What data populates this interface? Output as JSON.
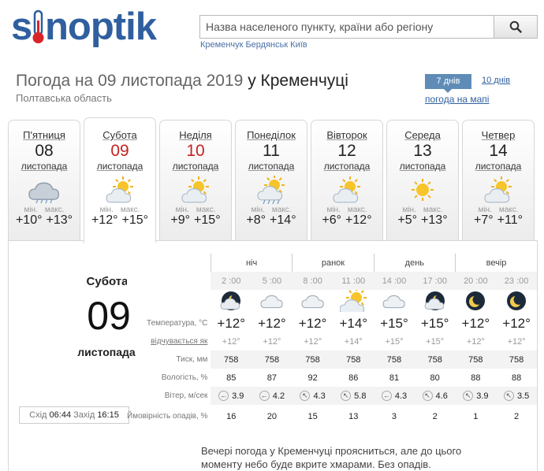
{
  "logo": {
    "text": "sinoptik"
  },
  "search": {
    "placeholder": "Назва населеного пункту, країни або регіону",
    "button_icon": "search-icon"
  },
  "quick_links": [
    "Кременчук",
    "Бердянськ",
    "Київ"
  ],
  "header": {
    "title_prefix": "Погода на 09 листопада 2019",
    "title_city": "у Кременчуці",
    "region": "Полтавська область",
    "tab_7": "7 днів",
    "tab_10": "10 днів",
    "map_link": "погода на мапі"
  },
  "days": [
    {
      "name": "П'ятниця",
      "num": "08",
      "month": "листопада",
      "min_label": "мін.",
      "max_label": "макс.",
      "min": "+10°",
      "max": "+13°",
      "icon": "cloud-rain-icon",
      "red": false,
      "active": false
    },
    {
      "name": "Субота",
      "num": "09",
      "month": "листопада",
      "min_label": "мін.",
      "max_label": "макс.",
      "min": "+12°",
      "max": "+15°",
      "icon": "sun-cloud-icon",
      "red": true,
      "active": true
    },
    {
      "name": "Неділя",
      "num": "10",
      "month": "листопада",
      "min_label": "мін.",
      "max_label": "макс.",
      "min": "+9°",
      "max": "+15°",
      "icon": "sun-cloud-icon",
      "red": true,
      "active": false
    },
    {
      "name": "Понеділок",
      "num": "11",
      "month": "листопада",
      "min_label": "мін.",
      "max_label": "макс.",
      "min": "+8°",
      "max": "+14°",
      "icon": "sun-cloud-rain-icon",
      "red": false,
      "active": false
    },
    {
      "name": "Вівторок",
      "num": "12",
      "month": "листопада",
      "min_label": "мін.",
      "max_label": "макс.",
      "min": "+6°",
      "max": "+12°",
      "icon": "sun-cloud-icon",
      "red": false,
      "active": false
    },
    {
      "name": "Середа",
      "num": "13",
      "month": "листопада",
      "min_label": "мін.",
      "max_label": "макс.",
      "min": "+5°",
      "max": "+13°",
      "icon": "sun-icon",
      "red": false,
      "active": false
    },
    {
      "name": "Четвер",
      "num": "14",
      "month": "листопада",
      "min_label": "мін.",
      "max_label": "макс.",
      "min": "+7°",
      "max": "+11°",
      "icon": "sun-cloud-icon",
      "red": false,
      "active": false
    }
  ],
  "detail": {
    "day_name": "Субота",
    "day_num": "09",
    "month": "листопада",
    "sunrise_label": "Схід",
    "sunrise": "06:44",
    "sunset_label": "Захід",
    "sunset": "16:15",
    "periods": [
      "ніч",
      "ранок",
      "день",
      "вечір"
    ],
    "hours": [
      "2 :00",
      "5 :00",
      "8 :00",
      "11 :00",
      "14 :00",
      "17 :00",
      "20 :00",
      "23 :00"
    ],
    "icons": [
      "moon-cloud-icon",
      "cloud-icon",
      "cloud-icon",
      "sun-cloud-icon",
      "cloud-icon",
      "moon-cloud-icon",
      "moon-icon",
      "moon-icon"
    ],
    "labels": {
      "temp": "Температура, °C",
      "feels": "відчувається як",
      "pressure": "Тиск, мм",
      "humidity": "Вологість, %",
      "wind": "Вітер, м/сек",
      "precip": "Ймовірність опадів, %"
    },
    "temp": [
      "+12°",
      "+12°",
      "+12°",
      "+14°",
      "+15°",
      "+15°",
      "+12°",
      "+12°"
    ],
    "feels": [
      "+12°",
      "+12°",
      "+12°",
      "+14°",
      "+15°",
      "+15°",
      "+12°",
      "+12°"
    ],
    "pressure": [
      "758",
      "758",
      "758",
      "758",
      "758",
      "758",
      "758",
      "758"
    ],
    "humidity": [
      "85",
      "87",
      "92",
      "86",
      "81",
      "80",
      "88",
      "88"
    ],
    "wind": [
      "3.9",
      "4.2",
      "4.3",
      "5.8",
      "4.3",
      "4.6",
      "3.9",
      "3.5"
    ],
    "wind_dir": [
      "←",
      "←",
      "↖",
      "↖",
      "←",
      "↖",
      "↖",
      "↖"
    ],
    "precip": [
      "16",
      "20",
      "15",
      "13",
      "3",
      "2",
      "1",
      "2"
    ],
    "description": "Вечері погода у Кременчуці проясниться, але до цього моменту небо буде вкрите хмарами. Без опадів."
  }
}
